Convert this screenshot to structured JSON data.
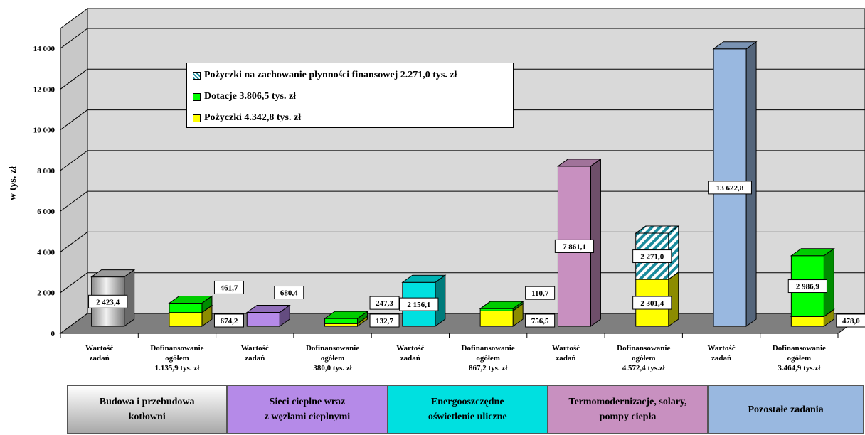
{
  "chart_data": {
    "type": "bar",
    "ylabel": "w tys. zł",
    "ylim": [
      0,
      14000
    ],
    "yticks": [
      "0",
      "2 000",
      "4 000",
      "6 000",
      "8 000",
      "10 000",
      "12 000",
      "14 000"
    ],
    "grid": true,
    "legend_position": "top-left",
    "colors": {
      "pozyczki": "#ffff00",
      "dotacje": "#00ff00",
      "plynnosc": "#ffffff",
      "plynnosc_hatch": "#1a8b9c",
      "budowa": "#c0c0c0",
      "sieci": "#b58ae8",
      "oswietlenie": "#00e0e0",
      "termo": "#c890c0",
      "pozostale": "#99b8e0",
      "floor": "#7f7f7f"
    },
    "legend": [
      {
        "key": "plynnosc",
        "label": "Pożyczki na zachowanie płynności finansowej 2.271,0 tys. zł"
      },
      {
        "key": "dotacje",
        "label": "Dotacje 3.806,5  tys. zł"
      },
      {
        "key": "pozyczki",
        "label": "Pożyczki 4.342,8  tys. zł"
      }
    ],
    "x_labels": [
      {
        "lines": [
          "Wartość",
          "zadań"
        ]
      },
      {
        "lines": [
          "Dofinansowanie",
          "ogółem",
          "1.135,9 tys. zł"
        ]
      },
      {
        "lines": [
          "Wartość",
          "zadań"
        ]
      },
      {
        "lines": [
          "Dofinansowanie",
          "ogółem",
          "380,0 tys. zł"
        ]
      },
      {
        "lines": [
          "Wartość",
          "zadań"
        ]
      },
      {
        "lines": [
          "Dofinansowanie",
          "ogółem",
          "867,2 tys. zł"
        ]
      },
      {
        "lines": [
          "Wartość",
          "zadań"
        ]
      },
      {
        "lines": [
          "Dofinansowanie",
          "ogółem",
          "4.572,4 tys.zł"
        ]
      },
      {
        "lines": [
          "Wartość",
          "zadań"
        ]
      },
      {
        "lines": [
          "Dofinansowanie",
          "ogółem",
          "3.464,9 tys.zł"
        ]
      }
    ],
    "groups": [
      {
        "name": "Budowa i przebudowa\nkotłowni",
        "color_key": "budowa",
        "total": {
          "value": 2423.4,
          "label": "2 423,4"
        },
        "funding": [
          {
            "key": "pozyczki",
            "value": 674.2,
            "label": "674,2"
          },
          {
            "key": "dotacje",
            "value": 461.7,
            "label": "461,7"
          }
        ]
      },
      {
        "name": "Sieci cieplne wraz\nz węzłami cieplnymi",
        "color_key": "sieci",
        "total": {
          "value": 680.4,
          "label": "680,4"
        },
        "funding": [
          {
            "key": "pozyczki",
            "value": 132.7,
            "label": "132,7"
          },
          {
            "key": "dotacje",
            "value": 247.3,
            "label": "247,3"
          }
        ]
      },
      {
        "name": "Energooszczędne\noświetlenie uliczne",
        "color_key": "oswietlenie",
        "total": {
          "value": 2156.1,
          "label": "2 156,1"
        },
        "funding": [
          {
            "key": "pozyczki",
            "value": 756.5,
            "label": "756,5"
          },
          {
            "key": "dotacje",
            "value": 110.7,
            "label": "110,7"
          }
        ]
      },
      {
        "name": "Termomodernizacje, solary,\npompy ciepła",
        "color_key": "termo",
        "total": {
          "value": 7861.1,
          "label": "7 861,1"
        },
        "funding": [
          {
            "key": "pozyczki",
            "value": 2301.4,
            "label": "2 301,4"
          },
          {
            "key": "plynnosc",
            "value": 2271.0,
            "label": "2 271,0"
          }
        ]
      },
      {
        "name": "Pozostałe zadania",
        "color_key": "pozostale",
        "total": {
          "value": 13622.8,
          "label": "13 622,8"
        },
        "funding": [
          {
            "key": "pozyczki",
            "value": 478.0,
            "label": "478,0"
          },
          {
            "key": "dotacje",
            "value": 2986.9,
            "label": "2 986,9"
          }
        ]
      }
    ]
  }
}
